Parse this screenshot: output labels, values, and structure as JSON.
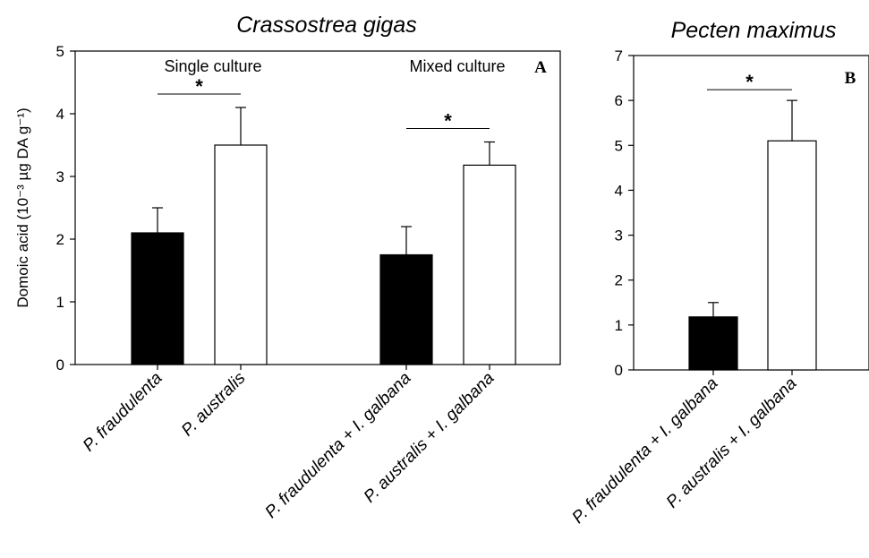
{
  "chart_data": [
    {
      "type": "bar",
      "title": "Crassostrea gigas",
      "panel_label": "A",
      "ylabel": "Domoic acid (10⁻³ µg DA g⁻¹)",
      "ylim": [
        0,
        5
      ],
      "yticks": [
        "0",
        "1",
        "2",
        "3",
        "4",
        "5"
      ],
      "categories": [
        "P. fraudulenta",
        "P. australis",
        "P. fraudulenta + I. galbana",
        "P. australis + I. galbana"
      ],
      "values": [
        2.1,
        3.5,
        1.75,
        3.18
      ],
      "errors": [
        0.4,
        0.6,
        0.45,
        0.37
      ],
      "colors": [
        "#000000",
        "#ffffff",
        "#000000",
        "#ffffff"
      ],
      "groups": [
        {
          "label": "Single culture",
          "significance": "*"
        },
        {
          "label": "Mixed culture",
          "significance": "*"
        }
      ]
    },
    {
      "type": "bar",
      "title": "Pecten maximus",
      "panel_label": "B",
      "ylim": [
        0,
        7
      ],
      "yticks": [
        "0",
        "1",
        "2",
        "3",
        "4",
        "5",
        "6",
        "7"
      ],
      "categories": [
        "P. fraudulenta + I. galbana",
        "P. australis + I. galbana"
      ],
      "values": [
        1.18,
        5.1
      ],
      "errors": [
        0.32,
        0.9
      ],
      "colors": [
        "#000000",
        "#ffffff"
      ],
      "significance": "*"
    }
  ]
}
